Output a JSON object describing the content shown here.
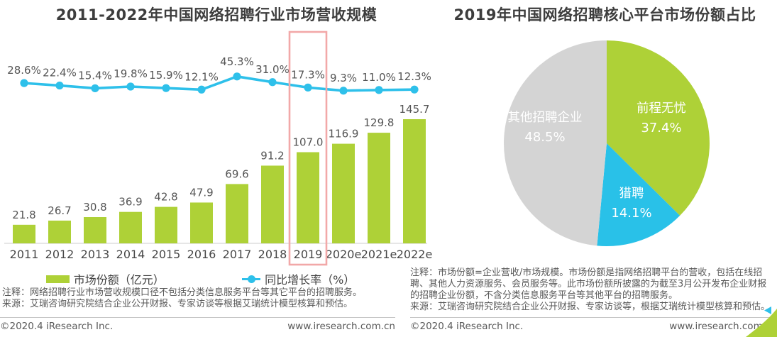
{
  "titles": {
    "left": "2011-2022年中国网络招聘行业市场营收规模",
    "right": "2019年中国网络招聘核心平台市场份额占比"
  },
  "chart_data": [
    {
      "type": "bar",
      "subtype": "bar-line-combo",
      "title": "2011-2022年中国网络招聘行业市场营收规模",
      "categories": [
        "2011",
        "2012",
        "2013",
        "2014",
        "2015",
        "2016",
        "2017",
        "2018",
        "2019",
        "2020e",
        "2021e",
        "2022e"
      ],
      "series": [
        {
          "name": "市场份额（亿元）",
          "kind": "bar",
          "values": [
            21.8,
            26.7,
            30.8,
            36.9,
            42.8,
            47.9,
            69.6,
            91.2,
            107.0,
            116.9,
            129.8,
            145.7
          ],
          "labels": [
            "21.8",
            "26.7",
            "30.8",
            "36.9",
            "42.8",
            "47.9",
            "69.6",
            "91.2",
            "107.0",
            "116.9",
            "129.8",
            "145.7"
          ],
          "color": "#aed137"
        },
        {
          "name": "同比增长率（%）",
          "kind": "line",
          "values": [
            28.6,
            22.4,
            15.4,
            19.8,
            15.9,
            12.1,
            45.3,
            31.0,
            17.3,
            9.3,
            11.0,
            12.3
          ],
          "labels": [
            "28.6%",
            "22.4%",
            "15.4%",
            "19.8%",
            "15.9%",
            "12.1%",
            "45.3%",
            "31.0%",
            "17.3%",
            "9.3%",
            "11.0%",
            "12.3%"
          ],
          "color": "#2ec0ea"
        }
      ],
      "highlight_category": "2019",
      "highlight_color": "#f2a8a8",
      "bar_ylim": [
        0,
        160
      ],
      "grid": false,
      "legend_position": "bottom"
    },
    {
      "type": "pie",
      "title": "2019年中国网络招聘核心平台市场份额占比",
      "labels": [
        "前程无忧",
        "猎聘",
        "其他招聘企业"
      ],
      "values": [
        37.4,
        14.1,
        48.5
      ],
      "value_labels": [
        "37.4%",
        "14.1%",
        "48.5%"
      ],
      "colors": [
        "#aed137",
        "#29c1e8",
        "#d4d4d4"
      ],
      "start_angle_deg": 0,
      "direction": "clockwise",
      "label_style": "name and percent inside slice, white text"
    }
  ],
  "left_notes": {
    "note": "注释：网络招聘行业市场营收规模口径不包括分类信息服务平台等其它平台的招聘服务。",
    "source": "来源：艾瑞咨询研究院结合企业公开财报、专家访谈等根据艾瑞统计模型核算和预估。"
  },
  "right_notes": {
    "note": "注释：市场份额=企业营收/市场规模。市场份额是指网络招聘平台的营收，包括在线招聘、其他人力资源服务、会员服务等。此市场份额所披露的为截至3月公开发布企业财报的招聘企业份额，不含分类信息服务平台等其他平台的招聘服务。",
    "source": "来源：艾瑞咨询研究院结合企业公开财报、专家访谈等，根据艾瑞统计模型核算和预估。"
  },
  "footer": {
    "copyright": "©2020.4 iResearch Inc.",
    "website": "www.iresearch.com.cn"
  },
  "colors": {
    "bar_green": "#aed137",
    "line_cyan": "#2ec0ea",
    "pie_gray": "#d4d4d4",
    "highlight_pink": "#f2a8a8",
    "axis_gray": "#d8d8d8",
    "label_gray": "#555555"
  }
}
